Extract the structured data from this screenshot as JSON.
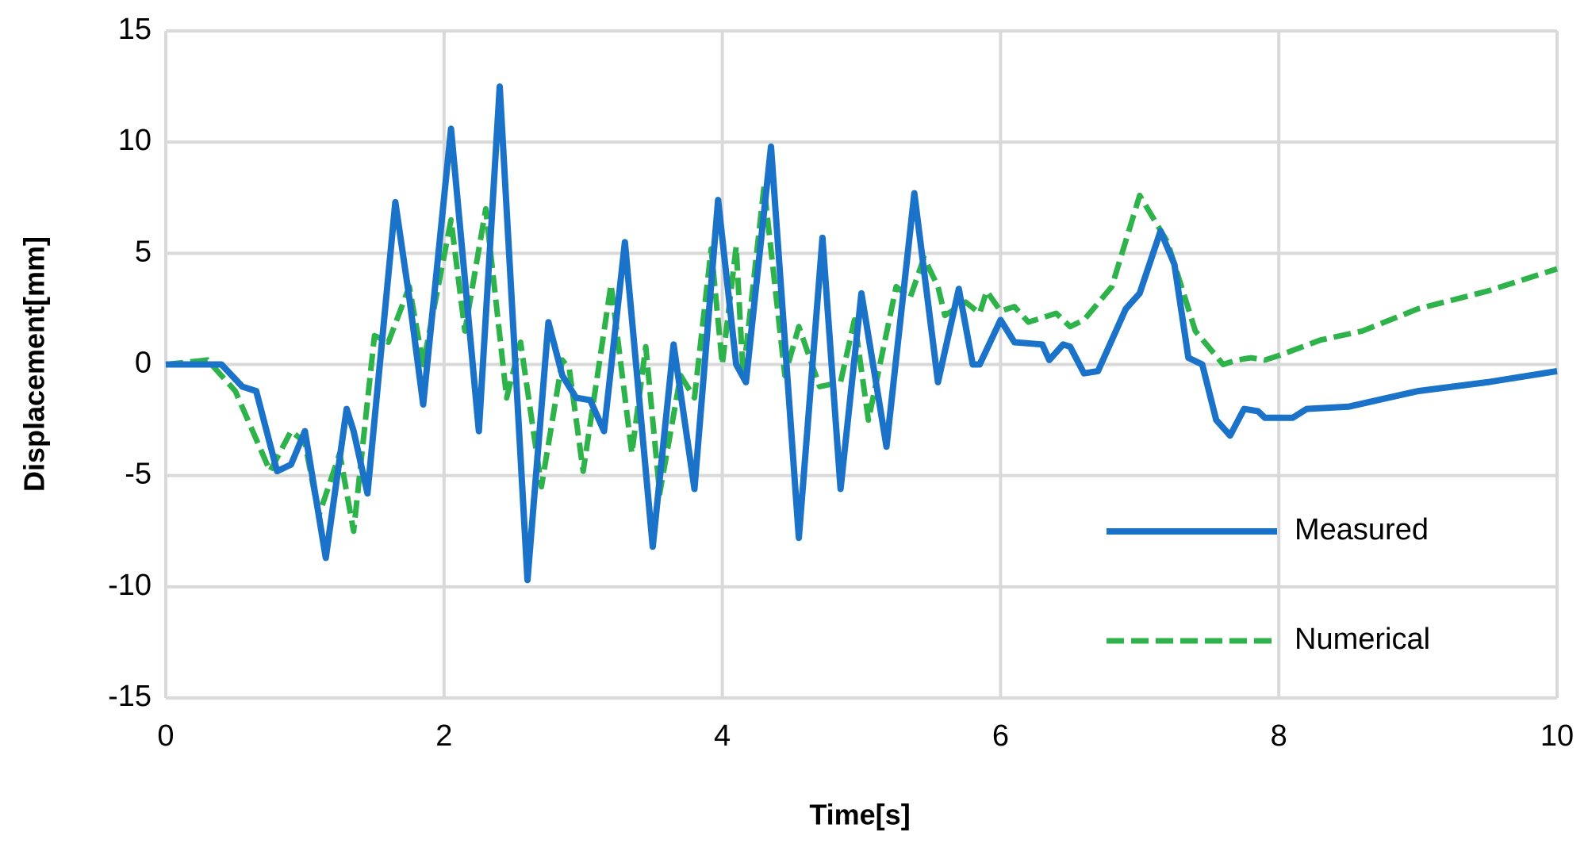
{
  "chart_data": {
    "type": "line",
    "x_label": "Time[s]",
    "y_label": "Displacement[mm]",
    "xlim": [
      0,
      10
    ],
    "xticks": [
      0,
      2,
      4,
      6,
      8,
      10
    ],
    "ylim": [
      -15,
      15
    ],
    "yticks": [
      -15,
      -10,
      -5,
      0,
      5,
      10,
      15
    ],
    "grid": true,
    "legend": "lower-right",
    "series": [
      {
        "name": "Measured",
        "color": "#1a73c8",
        "dash": "solid",
        "x": [
          0,
          0.4,
          0.55,
          0.65,
          0.8,
          0.9,
          1.0,
          1.15,
          1.3,
          1.35,
          1.45,
          1.65,
          1.75,
          1.85,
          2.05,
          2.25,
          2.4,
          2.6,
          2.75,
          2.85,
          2.95,
          3.05,
          3.15,
          3.3,
          3.5,
          3.65,
          3.8,
          3.97,
          4.1,
          4.17,
          4.35,
          4.55,
          4.72,
          4.85,
          5.0,
          5.18,
          5.38,
          5.55,
          5.7,
          5.8,
          5.85,
          6.0,
          6.1,
          6.3,
          6.35,
          6.45,
          6.5,
          6.6,
          6.7,
          6.9,
          7.0,
          7.15,
          7.25,
          7.35,
          7.45,
          7.55,
          7.65,
          7.75,
          7.85,
          7.9,
          8.1,
          8.2,
          8.5,
          9.0,
          9.5,
          10
        ],
        "values": [
          0,
          0,
          -1,
          -1.2,
          -4.8,
          -4.5,
          -3,
          -8.7,
          -2,
          -3,
          -5.8,
          7.3,
          3,
          -1.8,
          10.6,
          -3,
          12.5,
          -9.7,
          1.9,
          -0.5,
          -1.5,
          -1.6,
          -3,
          5.5,
          -8.2,
          0.9,
          -5.6,
          7.4,
          0,
          -0.8,
          9.8,
          -7.8,
          5.7,
          -5.6,
          3.2,
          -3.7,
          7.7,
          -0.8,
          3.4,
          0,
          0,
          2,
          1,
          0.9,
          0.2,
          0.9,
          0.8,
          -0.4,
          -0.3,
          2.5,
          3.2,
          6,
          4.5,
          0.3,
          0,
          -2.5,
          -3.2,
          -2,
          -2.1,
          -2.4,
          -2.4,
          -2,
          -1.9,
          -1.2,
          -0.8,
          -0.3
        ]
      },
      {
        "name": "Numerical",
        "color": "#2db34a",
        "dash": "dashed",
        "x": [
          0,
          0.3,
          0.5,
          0.75,
          0.9,
          1.0,
          1.1,
          1.25,
          1.35,
          1.5,
          1.6,
          1.75,
          1.85,
          2.05,
          2.15,
          2.3,
          2.45,
          2.55,
          2.7,
          2.85,
          2.9,
          3.0,
          3.2,
          3.35,
          3.45,
          3.55,
          3.7,
          3.8,
          3.92,
          4.0,
          4.1,
          4.15,
          4.3,
          4.45,
          4.55,
          4.7,
          4.85,
          4.95,
          5.05,
          5.25,
          5.35,
          5.45,
          5.55,
          5.6,
          5.75,
          5.85,
          5.9,
          6.0,
          6.1,
          6.2,
          6.4,
          6.5,
          6.6,
          6.8,
          7.0,
          7.2,
          7.4,
          7.6,
          7.7,
          7.8,
          7.9,
          8.0,
          8.3,
          8.6,
          9.0,
          9.5,
          10
        ],
        "values": [
          0,
          0.2,
          -1.2,
          -4.8,
          -3,
          -3.5,
          -6.8,
          -4,
          -7.5,
          1.3,
          1,
          3.5,
          0,
          6.5,
          1.5,
          7,
          -1.5,
          1,
          -5.5,
          0.2,
          -0.2,
          -4.8,
          3.6,
          -4,
          0.8,
          -5.8,
          -0.5,
          -1.5,
          5.2,
          0,
          5.3,
          -0.5,
          8,
          -0.5,
          1.7,
          -1,
          -0.8,
          2,
          -2.5,
          3.5,
          3,
          4.8,
          3.5,
          2.2,
          2.8,
          2.3,
          3.3,
          2.4,
          2.6,
          1.9,
          2.3,
          1.7,
          2,
          3.5,
          7.6,
          5.5,
          1.5,
          0,
          0.2,
          0.3,
          0.2,
          0.4,
          1.1,
          1.5,
          2.5,
          3.3,
          4.3
        ]
      }
    ]
  }
}
